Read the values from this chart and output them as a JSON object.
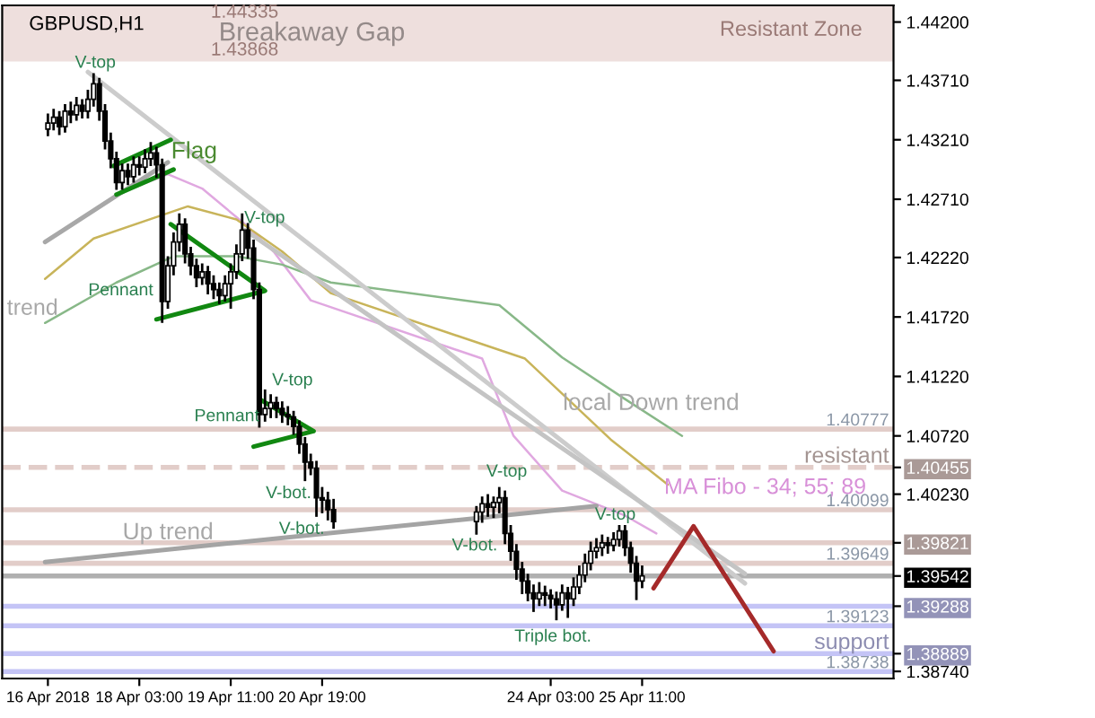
{
  "chart_data": {
    "type": "candlestick",
    "title": "GBPUSD,H1",
    "color": "#000000",
    "x": [
      "2018-04-16T19:00",
      "2018-04-16T21:00",
      "2018-04-16T23:00",
      "2018-04-17T01:00",
      "2018-04-17T03:00",
      "2018-04-17T05:00",
      "2018-04-17T07:00",
      "2018-04-17T09:00",
      "2018-04-17T11:00",
      "2018-04-17T13:00",
      "2018-04-17T15:00",
      "2018-04-17T17:00",
      "2018-04-17T19:00",
      "2018-04-17T21:00",
      "2018-04-17T23:00",
      "2018-04-18T01:00",
      "2018-04-18T03:00",
      "2018-04-18T05:00",
      "2018-04-18T07:00",
      "2018-04-18T09:00",
      "2018-04-18T11:00",
      "2018-04-18T13:00",
      "2018-04-18T15:00",
      "2018-04-18T17:00",
      "2018-04-18T19:00",
      "2018-04-18T21:00",
      "2018-04-18T23:00",
      "2018-04-19T01:00",
      "2018-04-19T03:00",
      "2018-04-19T05:00",
      "2018-04-19T07:00",
      "2018-04-19T09:00",
      "2018-04-19T11:00",
      "2018-04-19T13:00",
      "2018-04-19T15:00",
      "2018-04-19T17:00",
      "2018-04-19T19:00",
      "2018-04-19T21:00",
      "2018-04-19T23:00",
      "2018-04-20T01:00",
      "2018-04-20T03:00",
      "2018-04-20T05:00",
      "2018-04-20T07:00",
      "2018-04-20T09:00",
      "2018-04-20T11:00",
      "2018-04-20T13:00",
      "2018-04-20T15:00",
      "2018-04-20T17:00",
      "2018-04-20T19:00",
      "2018-04-20T21:00",
      "2018-04-20T23:00",
      "2018-04-23T01:00",
      "2018-04-23T03:00",
      "2018-04-23T05:00",
      "2018-04-23T07:00",
      "2018-04-23T09:00",
      "2018-04-23T11:00",
      "2018-04-23T13:00",
      "2018-04-23T15:00",
      "2018-04-23T17:00",
      "2018-04-23T19:00",
      "2018-04-23T21:00",
      "2018-04-23T23:00",
      "2018-04-24T01:00",
      "2018-04-24T03:00",
      "2018-04-24T05:00",
      "2018-04-24T07:00",
      "2018-04-24T09:00",
      "2018-04-24T11:00",
      "2018-04-24T13:00",
      "2018-04-24T15:00",
      "2018-04-24T17:00",
      "2018-04-24T19:00",
      "2018-04-24T21:00",
      "2018-04-24T23:00",
      "2018-04-25T01:00",
      "2018-04-25T03:00",
      "2018-04-25T05:00",
      "2018-04-25T07:00",
      "2018-04-25T09:00",
      "2018-04-25T11:00"
    ],
    "ohlc": [
      [
        1.433,
        1.4342,
        1.4325,
        1.4335
      ],
      [
        1.4335,
        1.4346,
        1.433,
        1.434
      ],
      [
        1.434,
        1.4344,
        1.4326,
        1.4332
      ],
      [
        1.4332,
        1.435,
        1.4328,
        1.4345
      ],
      [
        1.4345,
        1.4352,
        1.4336,
        1.4342
      ],
      [
        1.4342,
        1.4356,
        1.4338,
        1.435
      ],
      [
        1.435,
        1.4354,
        1.434,
        1.4345
      ],
      [
        1.4345,
        1.4362,
        1.434,
        1.4355
      ],
      [
        1.4355,
        1.4376,
        1.435,
        1.4368
      ],
      [
        1.4368,
        1.4372,
        1.4338,
        1.4345
      ],
      [
        1.4345,
        1.435,
        1.4314,
        1.432
      ],
      [
        1.432,
        1.4326,
        1.4298,
        1.4305
      ],
      [
        1.4305,
        1.431,
        1.428,
        1.4285
      ],
      [
        1.4285,
        1.43,
        1.428,
        1.4295
      ],
      [
        1.4295,
        1.43,
        1.4284,
        1.429
      ],
      [
        1.429,
        1.4306,
        1.4286,
        1.43
      ],
      [
        1.43,
        1.4306,
        1.4292,
        1.4298
      ],
      [
        1.4298,
        1.4312,
        1.4294,
        1.4305
      ],
      [
        1.4305,
        1.4318,
        1.43,
        1.431
      ],
      [
        1.431,
        1.4314,
        1.429,
        1.43
      ],
      [
        1.43,
        1.4304,
        1.4168,
        1.4185
      ],
      [
        1.4185,
        1.4222,
        1.418,
        1.4215
      ],
      [
        1.4215,
        1.4242,
        1.4208,
        1.4235
      ],
      [
        1.4235,
        1.4258,
        1.4228,
        1.425
      ],
      [
        1.425,
        1.4254,
        1.4218,
        1.4225
      ],
      [
        1.4225,
        1.423,
        1.4208,
        1.4215
      ],
      [
        1.4215,
        1.422,
        1.4198,
        1.4205
      ],
      [
        1.4205,
        1.4216,
        1.42,
        1.421
      ],
      [
        1.421,
        1.4214,
        1.4192,
        1.42
      ],
      [
        1.42,
        1.4206,
        1.4188,
        1.4195
      ],
      [
        1.4195,
        1.42,
        1.4184,
        1.419
      ],
      [
        1.419,
        1.4206,
        1.4186,
        1.42
      ],
      [
        1.42,
        1.4216,
        1.418,
        1.421
      ],
      [
        1.421,
        1.4232,
        1.4205,
        1.4225
      ],
      [
        1.4225,
        1.4258,
        1.422,
        1.4245
      ],
      [
        1.4245,
        1.425,
        1.4222,
        1.423
      ],
      [
        1.423,
        1.4236,
        1.4188,
        1.4195
      ],
      [
        1.4195,
        1.42,
        1.408,
        1.409
      ],
      [
        1.409,
        1.411,
        1.4085,
        1.4095
      ],
      [
        1.4095,
        1.4106,
        1.4088,
        1.41
      ],
      [
        1.41,
        1.4104,
        1.4088,
        1.4095
      ],
      [
        1.4095,
        1.41,
        1.4084,
        1.409
      ],
      [
        1.409,
        1.4096,
        1.4082,
        1.4088
      ],
      [
        1.4088,
        1.4092,
        1.4074,
        1.408
      ],
      [
        1.408,
        1.4084,
        1.4058,
        1.4065
      ],
      [
        1.4065,
        1.407,
        1.4035,
        1.405
      ],
      [
        1.405,
        1.4056,
        1.404,
        1.4045
      ],
      [
        1.4045,
        1.405,
        1.4005,
        1.402
      ],
      [
        1.402,
        1.4028,
        1.4008,
        1.4018
      ],
      [
        1.4018,
        1.4024,
        1.4002,
        1.401
      ],
      [
        1.401,
        1.4018,
        1.3995,
        1.4
      ],
      [
        1.4,
        1.4012,
        1.399,
        1.4008
      ],
      [
        1.4008,
        1.402,
        1.4,
        1.4015
      ],
      [
        1.4015,
        1.4022,
        1.4005,
        1.4012
      ],
      [
        1.4012,
        1.402,
        1.4004,
        1.4016
      ],
      [
        1.4016,
        1.4028,
        1.4008,
        1.402
      ],
      [
        1.402,
        1.4025,
        1.3982,
        1.399
      ],
      [
        1.399,
        1.3996,
        1.3968,
        1.3975
      ],
      [
        1.3975,
        1.398,
        1.3952,
        1.396
      ],
      [
        1.396,
        1.3965,
        1.394,
        1.395
      ],
      [
        1.395,
        1.3955,
        1.3934,
        1.394
      ],
      [
        1.394,
        1.3946,
        1.3925,
        1.3935
      ],
      [
        1.3935,
        1.3948,
        1.393,
        1.394
      ],
      [
        1.394,
        1.3945,
        1.393,
        1.3938
      ],
      [
        1.3938,
        1.3942,
        1.3928,
        1.3935
      ],
      [
        1.3935,
        1.394,
        1.3918,
        1.393
      ],
      [
        1.393,
        1.3946,
        1.3926,
        1.394
      ],
      [
        1.394,
        1.3944,
        1.392,
        1.3935
      ],
      [
        1.3935,
        1.3952,
        1.393,
        1.3945
      ],
      [
        1.3945,
        1.3962,
        1.394,
        1.3955
      ],
      [
        1.3955,
        1.3972,
        1.395,
        1.3965
      ],
      [
        1.3965,
        1.3982,
        1.396,
        1.3975
      ],
      [
        1.3975,
        1.3985,
        1.397,
        1.3978
      ],
      [
        1.3978,
        1.3988,
        1.3972,
        1.3982
      ],
      [
        1.3982,
        1.3986,
        1.3974,
        1.398
      ],
      [
        1.398,
        1.399,
        1.3976,
        1.3985
      ],
      [
        1.3985,
        1.3996,
        1.398,
        1.3992
      ],
      [
        1.3992,
        1.3996,
        1.3972,
        1.3978
      ],
      [
        1.3978,
        1.3982,
        1.3958,
        1.3965
      ],
      [
        1.3965,
        1.397,
        1.3935,
        1.395
      ],
      [
        1.395,
        1.3962,
        1.3945,
        1.39542
      ]
    ],
    "series": [
      {
        "type": "line",
        "color": "#e0a8e0",
        "x": [
          "2018-04-17T19:00",
          "2018-04-18T13:00",
          "2018-04-19T01:00",
          "2018-04-19T16:00",
          "2018-04-20T02:00",
          "2018-04-20T15:00",
          "2018-04-23T03:00",
          "2018-04-23T14:00",
          "2018-04-24T07:00",
          "2018-04-25T05:00",
          "2018-04-25T16:00"
        ],
        "values": [
          1.4275,
          1.4292,
          1.428,
          1.425,
          1.4227,
          1.4186,
          1.4137,
          1.4072,
          1.4026,
          1.4005,
          1.399
        ]
      },
      {
        "type": "line",
        "color": "#c8b45a",
        "x": [
          "2018-04-16T18:00",
          "2018-04-17T11:00",
          "2018-04-18T20:00",
          "2018-04-19T13:00",
          "2018-04-20T05:00",
          "2018-04-20T22:00",
          "2018-04-23T18:00",
          "2018-04-25T00:00",
          "2018-04-25T20:00"
        ],
        "values": [
          1.4204,
          1.4238,
          1.4265,
          1.4254,
          1.4227,
          1.4192,
          1.4137,
          1.4069,
          1.4031
        ]
      },
      {
        "type": "line",
        "color": "#88b888",
        "x": [
          "2018-04-16T18:00",
          "2018-04-17T19:00",
          "2018-04-18T15:00",
          "2018-04-19T13:00",
          "2018-04-20T05:00",
          "2018-04-20T22:00",
          "2018-04-23T09:00",
          "2018-04-24T07:00",
          "2018-04-25T05:00",
          "2018-04-26T01:00"
        ],
        "values": [
          1.4167,
          1.4201,
          1.4223,
          1.4223,
          1.4216,
          1.4201,
          1.4182,
          1.4138,
          1.4103,
          1.4072
        ]
      },
      {
        "type": "line",
        "color": "#cccccc",
        "x": [
          "2018-04-17T09:00",
          "2018-04-26T23:00"
        ],
        "values": [
          1.4378,
          1.3948
        ]
      },
      {
        "type": "line",
        "color": "#c4c4c4",
        "x": [
          "2018-04-19T16:00",
          "2018-04-26T23:00"
        ],
        "values": [
          1.4245,
          1.3956
        ]
      },
      {
        "type": "line",
        "color": "#a8a8a8",
        "x": [
          "2018-04-16T18:00",
          "2018-04-18T13:00"
        ],
        "values": [
          1.4235,
          1.4302
        ]
      },
      {
        "type": "line",
        "color": "#a4a4a4",
        "x": [
          "2018-04-16T18:00",
          "2018-04-24T19:00"
        ],
        "values": [
          1.3966,
          1.4013
        ]
      },
      {
        "type": "line",
        "color": "#118811",
        "x": [
          "2018-04-17T18:00",
          "2018-04-18T14:00"
        ],
        "values": [
          1.4299,
          1.4321
        ]
      },
      {
        "type": "line",
        "color": "#118811",
        "x": [
          "2018-04-17T19:00",
          "2018-04-18T15:00"
        ],
        "values": [
          1.4275,
          1.4296
        ]
      },
      {
        "type": "line",
        "color": "#118811",
        "x": [
          "2018-04-18T14:00",
          "2018-04-19T23:00",
          "2018-04-18T09:00"
        ],
        "values": [
          1.425,
          1.4194,
          1.417
        ]
      },
      {
        "type": "line",
        "color": "#118811",
        "x": [
          "2018-04-19T21:00",
          "2018-04-20T16:00",
          "2018-04-19T19:00"
        ],
        "values": [
          1.4103,
          1.4076,
          1.4063
        ]
      },
      {
        "type": "line",
        "color": "#a52a2a",
        "x": [
          "2018-04-25T15:00",
          "2018-04-26T05:00",
          "2018-04-27T09:00"
        ],
        "values": [
          1.3944,
          1.3996,
          1.3891
        ]
      }
    ],
    "bands": [
      {
        "axis": "y",
        "from": 1.43868,
        "to": 1.44335,
        "label": "Breakaway Gap",
        "color": "#eedfdd"
      }
    ],
    "ref_lines": [
      {
        "axis": "y",
        "value": 1.40777,
        "label": "1.40777",
        "color": "#e2cdc9"
      },
      {
        "axis": "y",
        "value": 1.40455,
        "label": "resistant",
        "color": "#e2cdc9",
        "line_style": "dashed"
      },
      {
        "axis": "y",
        "value": 1.40099,
        "label": "1.40099",
        "color": "#e2cdc9"
      },
      {
        "axis": "y",
        "value": 1.39821,
        "color": "#e2cdc9"
      },
      {
        "axis": "y",
        "value": 1.39649,
        "label": "1.39649",
        "color": "#e2cdc9"
      },
      {
        "axis": "y",
        "value": 1.39542,
        "color": "#b0b0b0"
      },
      {
        "axis": "y",
        "value": 1.39288,
        "color": "#c4c4f6"
      },
      {
        "axis": "y",
        "value": 1.39123,
        "label": "1.39123",
        "color": "#c4c4f6"
      },
      {
        "axis": "y",
        "value": 1.38889,
        "label": "support",
        "color": "#c4c4f6"
      },
      {
        "axis": "y",
        "value": 1.38738,
        "label": "1.38738",
        "color": "#c4c4f6"
      }
    ],
    "annotations": [
      "1.44335",
      "1.43868",
      "Resistant Zone",
      {
        "text": "V-top",
        "x": "2018-04-17T11:00",
        "y": 1.4376
      },
      {
        "text": "Flag",
        "x": "2018-04-18T14:00",
        "y": 1.4321
      },
      {
        "text": "V-top",
        "x": "2018-04-19T15:00",
        "y": 1.4258
      },
      "Pennant",
      "trend",
      "Pennant",
      {
        "text": "V-top",
        "x": "2018-04-19T23:00",
        "y": 1.411
      },
      {
        "text": "V-bot.",
        "x": "2018-04-20T11:00",
        "y": 1.4035
      },
      {
        "text": "V-bot.",
        "x": "2018-04-20T15:00",
        "y": 1.4005
      },
      {
        "text": "V-bot.",
        "x": "2018-04-23T01:00",
        "y": 1.399
      },
      {
        "text": "V-top",
        "x": "2018-04-23T09:00",
        "y": 1.4028
      },
      "Up trend",
      "local Down trend",
      "MA Fibo - 34; 55; 89",
      {
        "text": "V-top",
        "x": "2018-04-25T01:00",
        "y": 1.3996
      },
      {
        "text": "Triple bot.",
        "x": "2018-04-24T05:00",
        "y": 1.3918
      }
    ],
    "xlim": [
      "2018-04-16T03:00",
      "2018-04-29T03:00"
    ],
    "xticks": [
      {
        "value": "2018-04-16T19:00",
        "label": "16 Apr 2018"
      },
      {
        "value": "2018-04-18T03:00",
        "label": "18 Apr 03:00"
      },
      {
        "value": "2018-04-19T11:00",
        "label": "19 Apr 11:00"
      },
      {
        "value": "2018-04-20T19:00",
        "label": "20 Apr 19:00"
      },
      {
        "value": "2018-04-24T03:00",
        "label": "24 Apr 03:00"
      },
      {
        "value": "2018-04-25T11:00",
        "label": "25 Apr 11:00"
      }
    ],
    "ylim": [
      1.3868,
      1.4434
    ],
    "yticks": [
      {
        "value": 1.442,
        "label": "1.44200"
      },
      {
        "value": 1.4371,
        "label": "1.43710"
      },
      {
        "value": 1.4321,
        "label": "1.43210"
      },
      {
        "value": 1.4271,
        "label": "1.42710"
      },
      {
        "value": 1.4222,
        "label": "1.42220"
      },
      {
        "value": 1.4172,
        "label": "1.41720"
      },
      {
        "value": 1.4122,
        "label": "1.41220"
      },
      {
        "value": 1.4072,
        "label": "1.40720"
      },
      {
        "value": 1.4023,
        "label": "1.40230"
      },
      {
        "value": 1.3874,
        "label": "1.38740"
      },
      {
        "value": 1.40455,
        "label": "1.40455"
      },
      {
        "value": 1.39821,
        "label": "1.39821"
      },
      {
        "value": 1.39542,
        "label": "1.39542"
      },
      {
        "value": 1.39288,
        "label": "1.39288"
      },
      {
        "value": 1.38889,
        "label": "1.38889"
      }
    ],
    "grid": false,
    "legend": false
  }
}
